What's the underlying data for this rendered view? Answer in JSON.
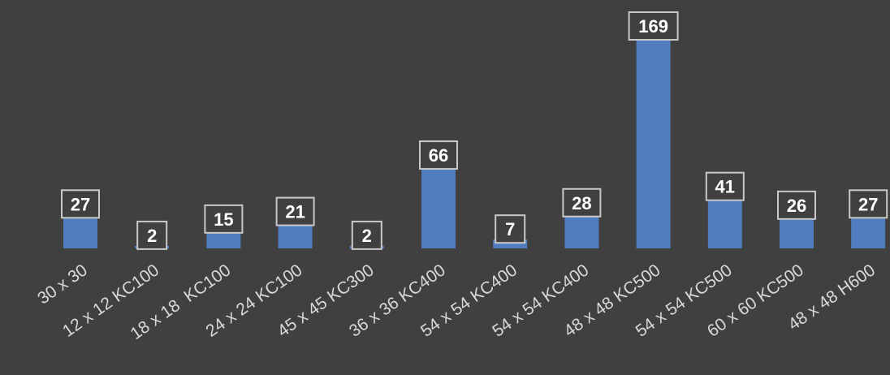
{
  "chart_data": {
    "type": "bar",
    "title": "",
    "xlabel": "",
    "ylabel": "",
    "categories": [
      "30 x 30",
      "12 x 12 KC100",
      "18 x 18  KC100",
      "24 x 24 KC100",
      "45 x 45 KC300",
      "36 x 36 KC400",
      "54 x 54 KC400",
      "54 x 54 KC400",
      "48 x 48 KC500",
      "54 x 54 KC500",
      "60 x 60 KC500",
      "48 x 48 H600"
    ],
    "values": [
      27,
      2,
      15,
      21,
      2,
      66,
      7,
      28,
      169,
      41,
      26,
      27
    ],
    "ylim": [
      0,
      169
    ],
    "grid": false,
    "legend": "none",
    "data_labels": true,
    "colors": {
      "bar": "#4f7dbd",
      "background": "#404040",
      "label_border": "#c9c9c9",
      "text": "#ffffff"
    }
  }
}
